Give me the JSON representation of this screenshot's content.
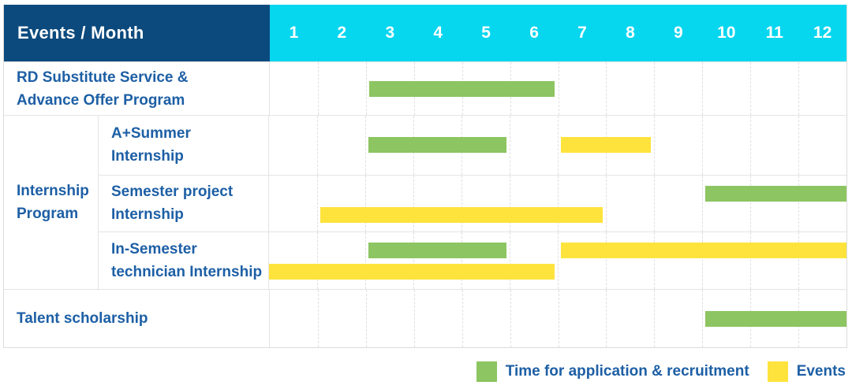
{
  "header": {
    "title": "Events / Month"
  },
  "colors": {
    "header_bg": "#0C4A7D",
    "months_bg": "#07D6EF",
    "label_text": "#1D5FA5",
    "application_green": "#8CC561",
    "event_yellow": "#FFE33D",
    "grid_line": "#DFDFDF"
  },
  "chart_data": {
    "type": "bar",
    "subtype": "gantt-timeline",
    "title": "Events / Month",
    "x_categories": [
      "1",
      "2",
      "3",
      "4",
      "5",
      "6",
      "7",
      "8",
      "9",
      "10",
      "11",
      "12"
    ],
    "x_range": [
      1,
      12
    ],
    "grid": "dashed-vertical-month-lines",
    "legend_position": "bottom-right",
    "palette": {
      "application": "#8CC561",
      "event": "#FFE33D"
    },
    "legend": [
      {
        "key": "application",
        "name": "Time for application & recruitment"
      },
      {
        "key": "event",
        "name": "Events"
      }
    ],
    "group": {
      "label_lines": [
        "Internship",
        "Program"
      ],
      "label": "Internship Program",
      "spans_rows": [
        1,
        2,
        3
      ]
    },
    "rows": [
      {
        "label": "RD Substitute Service & Advance Offer Program",
        "label_lines": [
          "RD Substitute Service &",
          "Advance Offer Program"
        ],
        "bars": [
          {
            "series_key": "application",
            "start_month": 3,
            "end_month": 6,
            "lane": "single"
          }
        ]
      },
      {
        "label": "A+Summer Internship",
        "label_lines": [
          "A+Summer",
          "Internship"
        ],
        "bars": [
          {
            "series_key": "application",
            "start_month": 3,
            "end_month": 5,
            "lane": "single"
          },
          {
            "series_key": "event",
            "start_month": 7,
            "end_month": 8,
            "lane": "single"
          }
        ]
      },
      {
        "label": "Semester project Internship",
        "label_lines": [
          "Semester project",
          "Internship"
        ],
        "bars": [
          {
            "series_key": "application",
            "start_month": 10,
            "end_month": 12,
            "lane": "top"
          },
          {
            "series_key": "event",
            "start_month": 2,
            "end_month": 7,
            "lane": "bottom"
          }
        ]
      },
      {
        "label": "In-Semester technician Internship",
        "label_lines": [
          "In-Semester",
          "technician Internship"
        ],
        "bars": [
          {
            "series_key": "application",
            "start_month": 3,
            "end_month": 5,
            "lane": "top"
          },
          {
            "series_key": "event",
            "start_month": 7,
            "end_month": 12,
            "lane": "top"
          },
          {
            "series_key": "event",
            "start_month": 1,
            "end_month": 6,
            "lane": "bottom"
          }
        ]
      },
      {
        "label": "Talent scholarship",
        "label_lines": [
          "Talent scholarship",
          ""
        ],
        "bars": [
          {
            "series_key": "application",
            "start_month": 10,
            "end_month": 12,
            "lane": "single"
          }
        ]
      }
    ]
  }
}
